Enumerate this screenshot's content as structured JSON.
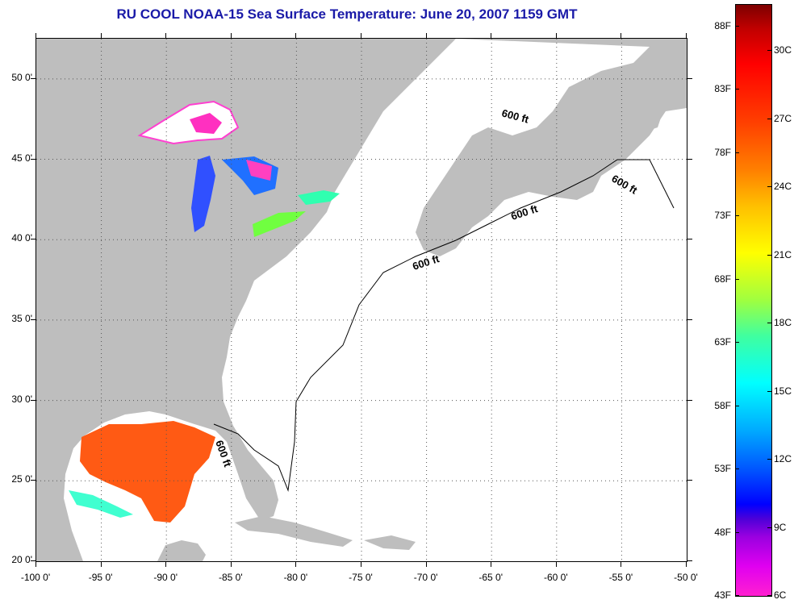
{
  "title": "RU COOL  NOAA-15  Sea Surface Temperature:  June 20, 2007 1159 GMT",
  "map": {
    "lon_range": [
      -100,
      -50
    ],
    "lat_range": [
      20,
      52.5
    ],
    "grid": "dotted",
    "x_ticks": [
      -100,
      -95,
      -90,
      -85,
      -80,
      -75,
      -70,
      -65,
      -60,
      -55,
      -50
    ],
    "y_ticks": [
      20,
      25,
      30,
      35,
      40,
      45,
      50
    ],
    "x_labels": [
      "-100 0'",
      "-95 0'",
      "-90 0'",
      "-85 0'",
      "-80 0'",
      "-75 0'",
      "-70 0'",
      "-65 0'",
      "-60 0'",
      "-55 0'",
      "-50 0'"
    ],
    "y_labels": [
      "20 0'",
      "25 0'",
      "30 0'",
      "35 0'",
      "40 0'",
      "45 0'",
      "50 0'"
    ],
    "land_color": "#bebebe",
    "no_data_color": "#ffffff",
    "depth_contour_labels": [
      "600 ft",
      "600 ft",
      "600 ft",
      "600 ft",
      "600 ft"
    ]
  },
  "colorbar": {
    "fahrenheit_labels": [
      "88F",
      "83F",
      "78F",
      "73F",
      "68F",
      "63F",
      "58F",
      "53F",
      "48F",
      "43F"
    ],
    "celsius_labels": [
      "30C",
      "27C",
      "24C",
      "21C",
      "18C",
      "15C",
      "12C",
      "9C",
      "6C"
    ],
    "min_color": "#ff20d0",
    "max_color": "#7d0000"
  },
  "title_color": "#1a1aa8"
}
